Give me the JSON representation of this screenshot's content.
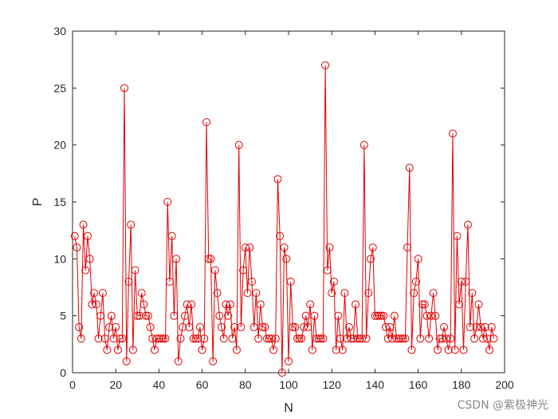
{
  "chart_data": {
    "type": "line",
    "title": "",
    "xlabel": "N",
    "ylabel": "P",
    "xlim": [
      0,
      200
    ],
    "ylim": [
      0,
      30
    ],
    "xticks": [
      0,
      20,
      40,
      60,
      80,
      100,
      120,
      140,
      160,
      180,
      200
    ],
    "yticks": [
      0,
      5,
      10,
      15,
      20,
      25,
      30
    ],
    "grid": false,
    "marker": "circle",
    "color": "#e00000",
    "series": [
      {
        "x": [
          1,
          2,
          3,
          4,
          5,
          6,
          7,
          8,
          9,
          10,
          11,
          12,
          13,
          14,
          15,
          16,
          17,
          18,
          19,
          20,
          21,
          22,
          23,
          24,
          25,
          26,
          27,
          28,
          29,
          30,
          31,
          32,
          33,
          34,
          35,
          36,
          37,
          38,
          39,
          40,
          41,
          42,
          43,
          44,
          45,
          46,
          47,
          48,
          49,
          50,
          51,
          52,
          53,
          54,
          55,
          56,
          57,
          58,
          59,
          60,
          61,
          62,
          63,
          64,
          65,
          66,
          67,
          68,
          69,
          70,
          71,
          72,
          73,
          74,
          75,
          76,
          77,
          78,
          79,
          80,
          81,
          82,
          83,
          84,
          85,
          86,
          87,
          88,
          89,
          90,
          91,
          92,
          93,
          94,
          95,
          96,
          97,
          98,
          99,
          100,
          101,
          102,
          103,
          104,
          105,
          106,
          107,
          108,
          109,
          110,
          111,
          112,
          113,
          114,
          115,
          116,
          117,
          118,
          119,
          120,
          121,
          122,
          123,
          124,
          125,
          126,
          127,
          128,
          129,
          130,
          131,
          132,
          133,
          134,
          135,
          136,
          137,
          138,
          139,
          140,
          141,
          142,
          143,
          144,
          145,
          146,
          147,
          148,
          149,
          150,
          151,
          152,
          153,
          154,
          155,
          156,
          157,
          158,
          159,
          160,
          161,
          162,
          163,
          164,
          165,
          166,
          167,
          168,
          169,
          170,
          171,
          172,
          173,
          174,
          175,
          176,
          177,
          178,
          179,
          180,
          181,
          182,
          183,
          184,
          185,
          186,
          187,
          188,
          189,
          190,
          191,
          192,
          193,
          194,
          195
        ],
        "y": [
          12,
          11,
          4,
          3,
          13,
          9,
          12,
          10,
          6,
          7,
          6,
          3,
          5,
          7,
          3,
          2,
          4,
          5,
          3,
          4,
          2,
          3,
          3,
          25,
          1,
          8,
          13,
          2,
          9,
          5,
          5,
          7,
          6,
          5,
          5,
          4,
          3,
          2,
          3,
          3,
          3,
          3,
          3,
          15,
          8,
          12,
          5,
          10,
          1,
          3,
          4,
          5,
          6,
          4,
          6,
          3,
          3,
          3,
          4,
          2,
          3,
          22,
          10,
          10,
          1,
          9,
          7,
          5,
          4,
          3,
          6,
          5,
          6,
          3,
          4,
          2,
          20,
          4,
          9,
          11,
          7,
          11,
          8,
          4,
          7,
          3,
          6,
          4,
          4,
          3,
          3,
          3,
          2,
          3,
          17,
          12,
          0,
          11,
          10,
          1,
          8,
          4,
          4,
          3,
          3,
          3,
          4,
          5,
          4,
          6,
          2,
          5,
          3,
          3,
          3,
          3,
          27,
          9,
          11,
          7,
          8,
          2,
          5,
          3,
          2,
          7,
          3,
          4,
          3,
          3,
          6,
          3,
          3,
          3,
          20,
          3,
          7,
          10,
          11,
          5,
          5,
          5,
          5,
          5,
          4,
          3,
          4,
          3,
          5,
          3,
          3,
          3,
          3,
          3,
          11,
          18,
          2,
          7,
          8,
          10,
          3,
          6,
          6,
          5,
          3,
          5,
          7,
          5,
          2,
          3,
          3,
          4,
          3,
          2,
          3,
          21,
          2,
          12,
          6,
          8,
          2,
          8,
          13,
          4,
          7,
          3,
          4,
          6,
          4,
          3,
          4,
          3,
          2,
          4,
          3
        ]
      }
    ]
  },
  "watermark": "CSDN @紫极神光"
}
